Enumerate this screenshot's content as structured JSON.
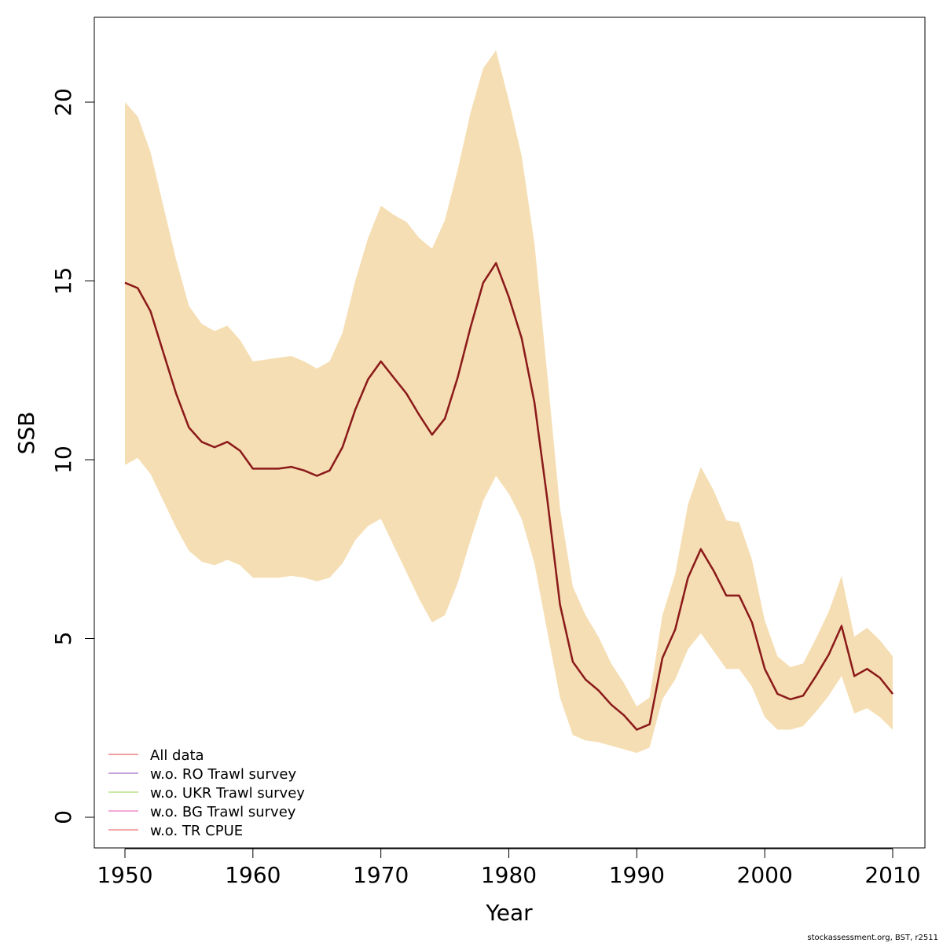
{
  "chart_data": {
    "type": "line",
    "title": "",
    "xlabel": "Year",
    "ylabel": "SSB",
    "xlim": [
      1950,
      2010
    ],
    "ylim": [
      0,
      21.5
    ],
    "xticks": [
      1950,
      1960,
      1970,
      1980,
      1990,
      2000,
      2010
    ],
    "yticks": [
      0,
      5,
      10,
      15,
      20
    ],
    "grid": false,
    "legend_position": "bottom-left",
    "x": [
      1950,
      1951,
      1952,
      1953,
      1954,
      1955,
      1956,
      1957,
      1958,
      1959,
      1960,
      1961,
      1962,
      1963,
      1964,
      1965,
      1966,
      1967,
      1968,
      1969,
      1970,
      1971,
      1972,
      1973,
      1974,
      1975,
      1976,
      1977,
      1978,
      1979,
      1980,
      1981,
      1982,
      1983,
      1984,
      1985,
      1986,
      1987,
      1988,
      1989,
      1990,
      1991,
      1992,
      1993,
      1994,
      1995,
      1996,
      1997,
      1998,
      1999,
      2000,
      2001,
      2002,
      2003,
      2004,
      2005,
      2006,
      2007,
      2008,
      2009,
      2010
    ],
    "band": {
      "color": "#F5DEB3",
      "upper": [
        20.0,
        19.6,
        18.6,
        17.1,
        15.6,
        14.3,
        13.8,
        13.6,
        13.75,
        13.35,
        12.75,
        12.8,
        12.85,
        12.9,
        12.75,
        12.55,
        12.75,
        13.55,
        15.0,
        16.2,
        17.1,
        16.85,
        16.65,
        16.2,
        15.9,
        16.7,
        18.1,
        19.7,
        20.95,
        21.45,
        20.05,
        18.5,
        16.05,
        12.4,
        8.65,
        6.45,
        5.65,
        5.05,
        4.3,
        3.75,
        3.1,
        3.35,
        5.65,
        6.8,
        8.75,
        9.8,
        9.15,
        8.3,
        8.25,
        7.2,
        5.5,
        4.5,
        4.2,
        4.3,
        5.0,
        5.75,
        6.75,
        5.05,
        5.3,
        4.95,
        4.5
      ],
      "lower": [
        9.85,
        10.05,
        9.6,
        8.85,
        8.1,
        7.45,
        7.15,
        7.05,
        7.2,
        7.05,
        6.7,
        6.7,
        6.7,
        6.75,
        6.7,
        6.6,
        6.7,
        7.1,
        7.75,
        8.15,
        8.35,
        7.6,
        6.85,
        6.1,
        5.45,
        5.65,
        6.55,
        7.75,
        8.85,
        9.55,
        9.05,
        8.35,
        7.1,
        5.2,
        3.35,
        2.3,
        2.15,
        2.1,
        2.0,
        1.9,
        1.8,
        1.95,
        3.3,
        3.85,
        4.7,
        5.15,
        4.65,
        4.15,
        4.15,
        3.65,
        2.8,
        2.45,
        2.45,
        2.55,
        2.95,
        3.4,
        3.95,
        2.9,
        3.05,
        2.8,
        2.45
      ]
    },
    "series": [
      {
        "name": "All data",
        "color": "#F08080",
        "values": [
          14.95,
          14.8,
          14.15,
          13.0,
          11.85,
          10.9,
          10.5,
          10.35,
          10.5,
          10.25,
          9.75,
          9.75,
          9.75,
          9.8,
          9.7,
          9.55,
          9.7,
          10.35,
          11.4,
          12.25,
          12.75,
          12.3,
          11.85,
          11.25,
          10.7,
          11.15,
          12.3,
          13.7,
          14.95,
          15.5,
          14.55,
          13.4,
          11.6,
          8.9,
          5.95,
          4.35,
          3.85,
          3.55,
          3.15,
          2.85,
          2.45,
          2.6,
          4.45,
          5.25,
          6.7,
          7.5,
          6.9,
          6.2,
          6.2,
          5.45,
          4.15,
          3.45,
          3.3,
          3.4,
          3.95,
          4.55,
          5.35,
          3.95,
          4.15,
          3.9,
          3.45
        ]
      },
      {
        "name": "w.o. RO Trawl survey",
        "color": "#B084D0",
        "values": [
          14.95,
          14.8,
          14.15,
          13.0,
          11.85,
          10.9,
          10.5,
          10.35,
          10.5,
          10.25,
          9.75,
          9.75,
          9.75,
          9.8,
          9.7,
          9.55,
          9.7,
          10.35,
          11.4,
          12.25,
          12.75,
          12.3,
          11.85,
          11.25,
          10.7,
          11.15,
          12.3,
          13.7,
          14.95,
          15.5,
          14.55,
          13.4,
          11.6,
          8.9,
          5.95,
          4.35,
          3.85,
          3.55,
          3.15,
          2.85,
          2.45,
          2.6,
          4.45,
          5.25,
          6.7,
          7.5,
          6.9,
          6.2,
          6.2,
          5.45,
          4.15,
          3.45,
          3.3,
          3.4,
          3.95,
          4.55,
          5.35,
          3.95,
          4.15,
          3.9,
          3.45
        ]
      },
      {
        "name": "w.o. UKR Trawl survey",
        "color": "#B8E08A",
        "values": [
          14.95,
          14.8,
          14.15,
          13.0,
          11.85,
          10.9,
          10.5,
          10.35,
          10.5,
          10.25,
          9.75,
          9.75,
          9.75,
          9.8,
          9.7,
          9.55,
          9.7,
          10.35,
          11.4,
          12.25,
          12.75,
          12.3,
          11.85,
          11.25,
          10.7,
          11.15,
          12.3,
          13.7,
          14.95,
          15.5,
          14.55,
          13.4,
          11.6,
          8.9,
          5.95,
          4.35,
          3.85,
          3.55,
          3.15,
          2.85,
          2.45,
          2.6,
          4.45,
          5.25,
          6.7,
          7.5,
          6.9,
          6.2,
          6.2,
          5.45,
          4.15,
          3.45,
          3.3,
          3.4,
          3.95,
          4.55,
          5.35,
          3.95,
          4.15,
          3.9,
          3.45
        ]
      },
      {
        "name": "w.o. BG Trawl survey",
        "color": "#F08CC8",
        "values": [
          14.95,
          14.8,
          14.15,
          13.0,
          11.85,
          10.9,
          10.5,
          10.35,
          10.5,
          10.25,
          9.75,
          9.75,
          9.75,
          9.8,
          9.7,
          9.55,
          9.7,
          10.35,
          11.4,
          12.25,
          12.75,
          12.3,
          11.85,
          11.25,
          10.7,
          11.15,
          12.3,
          13.7,
          14.95,
          15.5,
          14.55,
          13.4,
          11.6,
          8.9,
          5.95,
          4.35,
          3.85,
          3.55,
          3.15,
          2.85,
          2.45,
          2.6,
          4.45,
          5.25,
          6.7,
          7.5,
          6.9,
          6.2,
          6.2,
          5.45,
          4.15,
          3.45,
          3.3,
          3.4,
          3.95,
          4.55,
          5.35,
          3.95,
          4.15,
          3.9,
          3.45
        ]
      },
      {
        "name": "w.o. TR CPUE",
        "color": "#F08C8C",
        "values": [
          14.95,
          14.8,
          14.15,
          13.0,
          11.85,
          10.9,
          10.5,
          10.35,
          10.5,
          10.25,
          9.75,
          9.75,
          9.75,
          9.8,
          9.7,
          9.55,
          9.7,
          10.35,
          11.4,
          12.25,
          12.75,
          12.3,
          11.85,
          11.25,
          10.7,
          11.15,
          12.3,
          13.7,
          14.95,
          15.5,
          14.55,
          13.4,
          11.6,
          8.9,
          5.95,
          4.35,
          3.85,
          3.55,
          3.15,
          2.85,
          2.45,
          2.6,
          4.45,
          5.25,
          6.7,
          7.5,
          6.9,
          6.2,
          6.2,
          5.45,
          4.15,
          3.45,
          3.3,
          3.4,
          3.95,
          4.55,
          5.35,
          3.95,
          4.15,
          3.9,
          3.45
        ]
      }
    ],
    "main_line_color": "#8B1A1A"
  },
  "credit": "stockassessment.org, BST, r2511"
}
